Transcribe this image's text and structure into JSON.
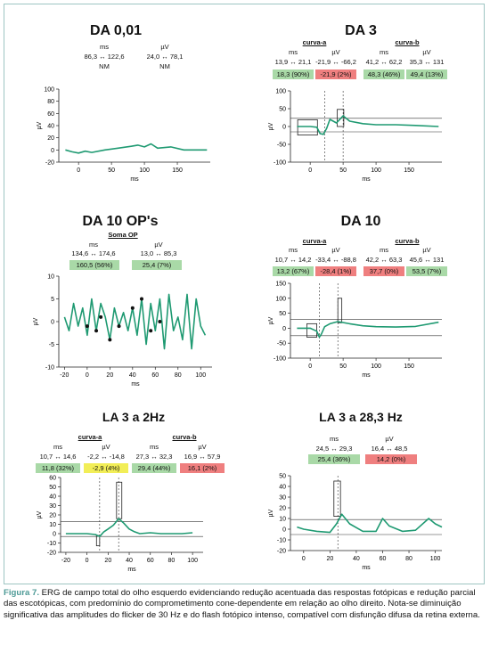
{
  "colors": {
    "trace": "#1f9a72",
    "box_green": "#a9d9a7",
    "box_red": "#ef7f7f",
    "box_yellow": "#f2ee57"
  },
  "panels": {
    "da001": {
      "title": "DA 0,01",
      "h_ms": "ms",
      "h_uv": "µV",
      "ms": "86,3 ↔ 122,6",
      "uv": "24,0 ↔ 78,1",
      "ms_pct": "NM",
      "uv_pct": "NM"
    },
    "da3": {
      "title": "DA 3",
      "curva_a": "curva-a",
      "curva_b": "curva-b",
      "h": [
        "ms",
        "µV",
        "ms",
        "µV"
      ],
      "v": [
        "13,9 ↔ 21,1",
        "-21,9 ↔ -66,2",
        "41,2 ↔ 62,2",
        "35,3 ↔ 131"
      ],
      "p": [
        "18,3 (90%)",
        "-21,9 (2%)",
        "48,3 (46%)",
        "49,4 (13%)"
      ]
    },
    "da10op": {
      "title": "DA 10 OP's",
      "soma": "Soma OP",
      "h_ms": "ms",
      "h_uv": "µV",
      "ms": "134,6 ↔ 174,6",
      "uv": "13,0 ↔ 85,3",
      "ms_pct": "160,5 (56%)",
      "uv_pct": "25,4 (7%)"
    },
    "da10": {
      "title": "DA 10",
      "curva_a": "curva-a",
      "curva_b": "curva-b",
      "h": [
        "ms",
        "µV",
        "ms",
        "µV"
      ],
      "v": [
        "10,7 ↔ 14,2",
        "-33,4 ↔ -88,8",
        "42,2 ↔ 63,3",
        "45,6 ↔ 131"
      ],
      "p": [
        "13,2 (67%)",
        "-28,4 (1%)",
        "37,7 (0%)",
        "53,5 (7%)"
      ]
    },
    "la3": {
      "title": "LA 3 a 2Hz",
      "curva_a": "curva-a",
      "curva_b": "curva-b",
      "h": [
        "ms",
        "µV",
        "ms",
        "µV"
      ],
      "v": [
        "10,7 ↔ 14,6",
        "-2,2 ↔ -14,8",
        "27,3 ↔ 32,3",
        "16,9 ↔ 57,9"
      ],
      "p": [
        "11,8 (32%)",
        "-2,9 (4%)",
        "29,4 (44%)",
        "16,1 (2%)"
      ]
    },
    "la3flicker": {
      "title": "LA 3 a 28,3 Hz",
      "h_ms": "ms",
      "h_uv": "µV",
      "ms": "24,5 ↔ 29,3",
      "uv": "16,4 ↔ 48,5",
      "ms_pct": "25,4 (36%)",
      "uv_pct": "14,2 (0%)"
    }
  },
  "chart_data": [
    {
      "type": "line",
      "title": "DA 0,01",
      "xlabel": "ms",
      "ylabel": "µV",
      "xlim": [
        -30,
        200
      ],
      "ylim": [
        -20,
        100
      ],
      "xticks": [
        0,
        50,
        100,
        150
      ],
      "yticks": [
        -20,
        0,
        20,
        40,
        60,
        80,
        100
      ],
      "x": [
        -20,
        -10,
        0,
        10,
        20,
        40,
        60,
        80,
        90,
        100,
        110,
        120,
        140,
        160,
        180,
        195
      ],
      "y": [
        0,
        -3,
        -5,
        -2,
        -4,
        0,
        3,
        6,
        8,
        5,
        10,
        3,
        5,
        0,
        0,
        0
      ]
    },
    {
      "type": "line",
      "title": "DA 3",
      "xlabel": "ms",
      "ylabel": "µV",
      "xlim": [
        -30,
        200
      ],
      "ylim": [
        -100,
        100
      ],
      "xticks": [
        0,
        50,
        100,
        150
      ],
      "yticks": [
        -100,
        -50,
        0,
        50,
        100
      ],
      "x": [
        -20,
        0,
        10,
        15,
        20,
        25,
        30,
        40,
        50,
        60,
        80,
        100,
        130,
        160,
        195
      ],
      "y": [
        0,
        0,
        -2,
        -20,
        -22,
        -5,
        20,
        10,
        30,
        15,
        8,
        5,
        5,
        3,
        0
      ]
    },
    {
      "type": "line",
      "title": "DA 10 OP's",
      "xlabel": "ms",
      "ylabel": "µV",
      "xlim": [
        -25,
        110
      ],
      "ylim": [
        -10,
        10
      ],
      "xticks": [
        -20,
        0,
        20,
        40,
        60,
        80,
        100
      ],
      "yticks": [
        -10,
        -5,
        0,
        5,
        10
      ],
      "x": [
        -20,
        -16,
        -12,
        -8,
        -4,
        0,
        4,
        8,
        12,
        16,
        20,
        24,
        28,
        32,
        36,
        40,
        44,
        48,
        52,
        56,
        60,
        64,
        68,
        72,
        76,
        80,
        84,
        88,
        92,
        96,
        100,
        104
      ],
      "y": [
        1,
        -2,
        4,
        -1,
        3,
        -3,
        5,
        -2,
        4,
        1,
        -4,
        3,
        -1,
        2,
        -2,
        3,
        -3,
        5,
        -5,
        4,
        -2,
        5,
        -6,
        6,
        -2,
        1,
        -4,
        6,
        -6,
        5,
        -1,
        -3
      ]
    },
    {
      "type": "line",
      "title": "DA 10",
      "xlabel": "ms",
      "ylabel": "µV",
      "xlim": [
        -30,
        200
      ],
      "ylim": [
        -100,
        150
      ],
      "xticks": [
        0,
        50,
        100,
        150
      ],
      "yticks": [
        -100,
        -50,
        0,
        50,
        100,
        150
      ],
      "x": [
        -20,
        0,
        10,
        14,
        17,
        22,
        30,
        42,
        60,
        80,
        100,
        130,
        160,
        195
      ],
      "y": [
        0,
        0,
        -10,
        -30,
        -20,
        5,
        15,
        22,
        15,
        8,
        5,
        4,
        6,
        20
      ]
    },
    {
      "type": "line",
      "title": "LA 3 a 2Hz",
      "xlabel": "ms",
      "ylabel": "µV",
      "xlim": [
        -25,
        110
      ],
      "ylim": [
        -20,
        60
      ],
      "xticks": [
        -20,
        0,
        20,
        40,
        60,
        80,
        100
      ],
      "yticks": [
        -20,
        -10,
        0,
        10,
        20,
        30,
        40,
        50,
        60
      ],
      "x": [
        -20,
        0,
        8,
        12,
        16,
        20,
        25,
        30,
        35,
        40,
        45,
        50,
        60,
        70,
        80,
        90,
        100
      ],
      "y": [
        0,
        0,
        -1,
        -3,
        2,
        5,
        9,
        16,
        11,
        5,
        2,
        0,
        1,
        0,
        0,
        0,
        1
      ]
    },
    {
      "type": "line",
      "title": "LA 3 a 28,3 Hz",
      "xlabel": "ms",
      "ylabel": "µV",
      "xlim": [
        -10,
        105
      ],
      "ylim": [
        -20,
        50
      ],
      "xticks": [
        0,
        20,
        40,
        60,
        80,
        100
      ],
      "yticks": [
        -20,
        -10,
        0,
        10,
        20,
        30,
        40,
        50
      ],
      "x": [
        -5,
        0,
        10,
        20,
        25,
        29,
        35,
        45,
        55,
        60,
        65,
        75,
        85,
        95,
        100,
        105
      ],
      "y": [
        2,
        0,
        -2,
        -3,
        5,
        14,
        5,
        -2,
        -2,
        10,
        3,
        -2,
        -1,
        10,
        5,
        2
      ]
    }
  ],
  "caption": {
    "label": "Figura 7.",
    "text": " ERG de campo total do olho esquerdo evidenciando redução acentuada das respostas fotópicas e redução parcial das escotópicas, com predomínio do comprometimento cone-dependente em relação ao olho direito. Nota-se diminuição significativa das amplitudes do flicker de 30 Hz e do flash fotópico intenso, compatível com disfunção difusa da retina externa."
  }
}
